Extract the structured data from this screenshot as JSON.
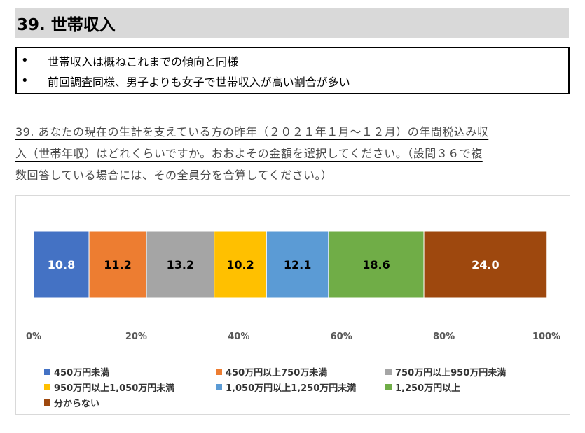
{
  "header": {
    "title": "39.  世帯収入"
  },
  "summary": {
    "bullet_symbol": "•",
    "bullets": [
      "世帯収入は概ねこれまでの傾向と同様",
      "前回調査同様、男子よりも女子で世帯収入が高い割合が多い"
    ]
  },
  "question": {
    "lines": [
      "39. あなたの現在の生計を支えている方の昨年（２０２１年１月～１２月）の年間税込み収",
      "入（世帯年収）はどれくらいですか。おおよその金額を選択してください。（設問３６で複",
      "数回答している場合には、その全員分を合算してください。）"
    ]
  },
  "chart_data": {
    "type": "bar",
    "orientation": "horizontal",
    "stacked": "percent",
    "title": "",
    "xlabel": "",
    "ylabel": "",
    "xlim": [
      0,
      100
    ],
    "x_ticks": [
      "0%",
      "20%",
      "40%",
      "60%",
      "80%",
      "100%"
    ],
    "grid": false,
    "legend_position": "bottom",
    "series": [
      {
        "name": "450万円未満",
        "value": 10.8,
        "label": "10.8",
        "color": "#4472c4",
        "label_color": "#ffffff"
      },
      {
        "name": "450万円以上750万未満",
        "value": 11.2,
        "label": "11.2",
        "color": "#ed7d31",
        "label_color": "#000000"
      },
      {
        "name": "750万円以上950万円未満",
        "value": 13.2,
        "label": "13.2",
        "color": "#a5a5a5",
        "label_color": "#000000"
      },
      {
        "name": "950万円以上1,050万円未満",
        "value": 10.2,
        "label": "10.2",
        "color": "#ffc000",
        "label_color": "#000000"
      },
      {
        "name": "1,050万円以上1,250万円未満",
        "value": 12.1,
        "label": "12.1",
        "color": "#5b9bd5",
        "label_color": "#000000"
      },
      {
        "name": "1,250万円以上",
        "value": 18.6,
        "label": "18.6",
        "color": "#70ad47",
        "label_color": "#000000"
      },
      {
        "name": "分からない",
        "value": 24.0,
        "label": "24.0",
        "color": "#9e480e",
        "label_color": "#ffffff"
      }
    ]
  }
}
